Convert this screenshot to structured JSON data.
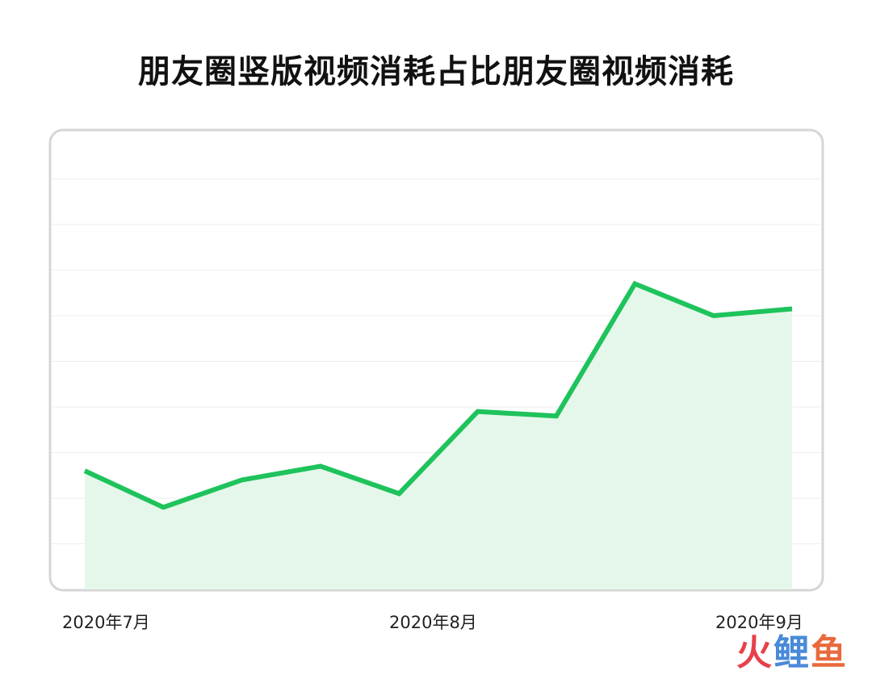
{
  "chart_data": {
    "type": "area",
    "title": "朋友圈竖版视频消耗占比朋友圈视频消耗",
    "xlabel": "",
    "ylabel": "",
    "x_tick_labels": [
      "2020年7月",
      "2020年8月",
      "2020年9月"
    ],
    "x": [
      0,
      1,
      2,
      3,
      4,
      5,
      6,
      7,
      8,
      9
    ],
    "values": [
      2.6,
      1.8,
      2.4,
      2.7,
      2.1,
      3.9,
      3.8,
      6.7,
      6.0,
      6.15
    ],
    "ylim": [
      0,
      10
    ],
    "grid": true,
    "y_ticks_shown": false,
    "line_color": "#1ec35c",
    "fill_color": "#e5f7ea",
    "frame_color": "#d6d6d6",
    "grid_color": "#eeeeee"
  },
  "watermark": {
    "part1": "火",
    "part2": "鲤",
    "part3": "鱼"
  }
}
